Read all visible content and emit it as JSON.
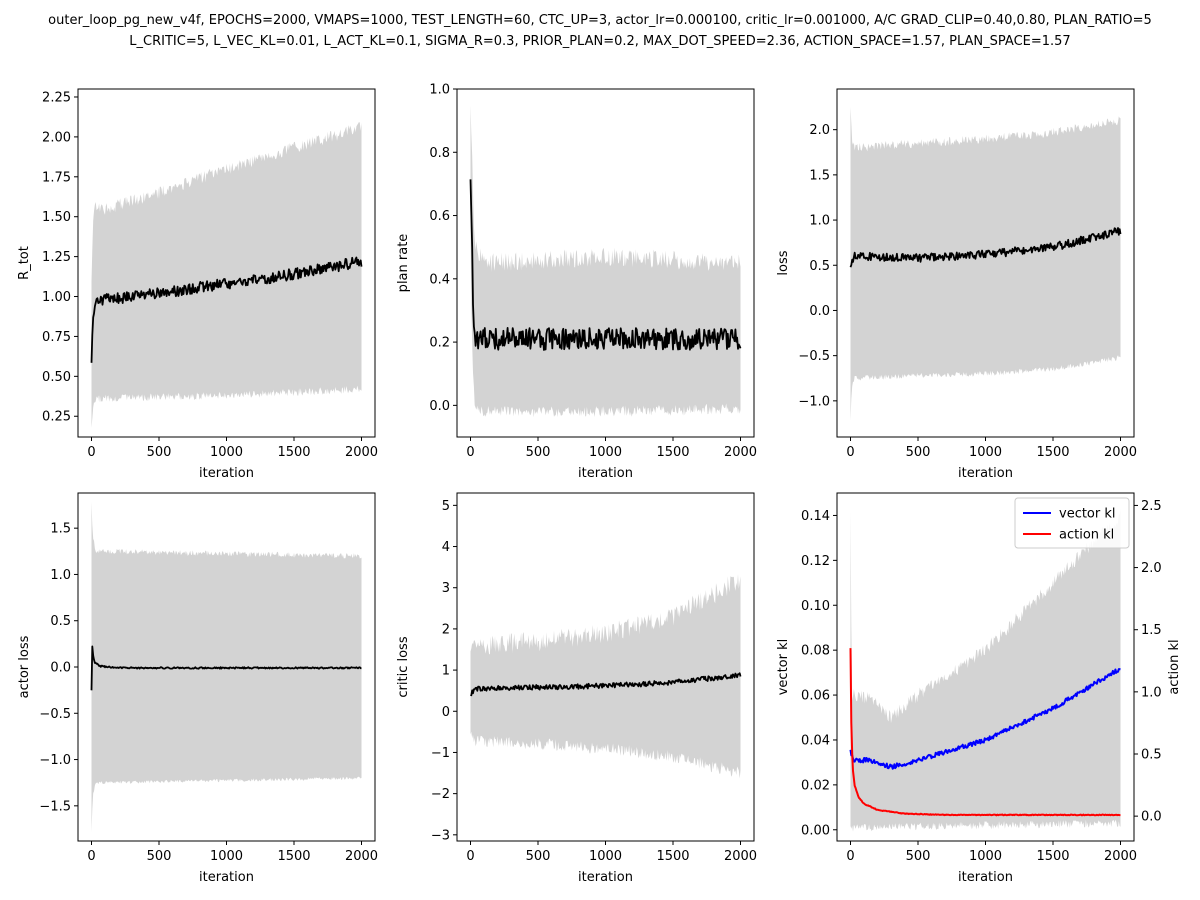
{
  "figure": {
    "title_lines": [
      "outer_loop_pg_new_v4f, EPOCHS=2000, VMAPS=1000, TEST_LENGTH=60, CTC_UP=3, actor_lr=0.000100, critic_lr=0.001000, A/C GRAD_CLIP=0.40,0.80, PLAN_RATIO=5",
      "L_CRITIC=5, L_VEC_KL=0.01, L_ACT_KL=0.1, SIGMA_R=0.3, PRIOR_PLAN=0.2, MAX_DOT_SPEED=2.36, ACTION_SPACE=1.57, PLAN_SPACE=1.57"
    ]
  },
  "colors": {
    "band": "#d3d3d3",
    "mean": "#000000",
    "vector": "#0000ff",
    "action": "#ff0000"
  },
  "chart_data": [
    {
      "type": "line",
      "id": "r-tot",
      "xlabel": "iteration",
      "ylabel": "R_tot",
      "xlim": [
        -100,
        2100
      ],
      "ylim": [
        0.12,
        2.3
      ],
      "xticks": [
        0,
        500,
        1000,
        1500,
        2000
      ],
      "yticks": [
        0.25,
        0.5,
        0.75,
        1.0,
        1.25,
        1.5,
        1.75,
        2.0,
        2.25
      ],
      "tick_decimals": 2,
      "mean": {
        "x": [
          0,
          10,
          30,
          100,
          500,
          1000,
          1500,
          2000
        ],
        "y": [
          0.62,
          0.85,
          0.96,
          0.98,
          1.02,
          1.08,
          1.14,
          1.22
        ]
      },
      "noise": 0.035,
      "band_lower": {
        "x": [
          0,
          10,
          30,
          100,
          500,
          1000,
          1500,
          2000
        ],
        "y": [
          0.17,
          0.3,
          0.36,
          0.36,
          0.37,
          0.38,
          0.4,
          0.42
        ]
      },
      "band_upper": {
        "x": [
          0,
          10,
          30,
          100,
          500,
          1000,
          1500,
          2000
        ],
        "y": [
          1.1,
          1.45,
          1.58,
          1.55,
          1.65,
          1.8,
          1.93,
          2.06
        ]
      },
      "band_noise": 0.04
    },
    {
      "type": "line",
      "id": "plan-rate",
      "xlabel": "iteration",
      "ylabel": "plan rate",
      "xlim": [
        -100,
        2100
      ],
      "ylim": [
        -0.1,
        1.0
      ],
      "xticks": [
        0,
        500,
        1000,
        1500,
        2000
      ],
      "yticks": [
        0.0,
        0.2,
        0.4,
        0.6,
        0.8,
        1.0
      ],
      "tick_decimals": 1,
      "mean": {
        "x": [
          0,
          10,
          20,
          40,
          100,
          1000,
          2000
        ],
        "y": [
          0.74,
          0.55,
          0.3,
          0.21,
          0.21,
          0.21,
          0.21
        ]
      },
      "noise": 0.035,
      "band_lower": {
        "x": [
          0,
          10,
          30,
          100,
          1000,
          2000
        ],
        "y": [
          0.55,
          0.2,
          0.0,
          -0.02,
          -0.02,
          -0.01
        ]
      },
      "band_upper": {
        "x": [
          0,
          10,
          30,
          100,
          1000,
          2000
        ],
        "y": [
          0.95,
          0.8,
          0.5,
          0.45,
          0.47,
          0.45
        ]
      },
      "band_noise": 0.03
    },
    {
      "type": "line",
      "id": "loss",
      "xlabel": "iteration",
      "ylabel": "loss",
      "xlim": [
        -100,
        2100
      ],
      "ylim": [
        -1.4,
        2.45
      ],
      "xticks": [
        0,
        500,
        1000,
        1500,
        2000
      ],
      "yticks": [
        -1.0,
        -0.5,
        0.0,
        0.5,
        1.0,
        1.5,
        2.0
      ],
      "tick_decimals": 1,
      "mean": {
        "x": [
          0,
          30,
          500,
          1000,
          1500,
          2000
        ],
        "y": [
          0.5,
          0.6,
          0.58,
          0.62,
          0.7,
          0.88
        ]
      },
      "noise": 0.045,
      "band_lower": {
        "x": [
          0,
          10,
          30,
          500,
          1000,
          1500,
          2000
        ],
        "y": [
          -1.2,
          -0.85,
          -0.75,
          -0.72,
          -0.7,
          -0.65,
          -0.52
        ]
      },
      "band_upper": {
        "x": [
          0,
          10,
          30,
          500,
          1000,
          1500,
          2000
        ],
        "y": [
          2.25,
          1.9,
          1.8,
          1.85,
          1.9,
          1.97,
          2.1
        ]
      },
      "band_noise": 0.05
    },
    {
      "type": "line",
      "id": "actor-loss",
      "xlabel": "iteration",
      "ylabel": "actor loss",
      "xlim": [
        -100,
        2100
      ],
      "ylim": [
        -1.88,
        1.88
      ],
      "xticks": [
        0,
        500,
        1000,
        1500,
        2000
      ],
      "yticks": [
        -1.5,
        -1.0,
        -0.5,
        0.0,
        0.5,
        1.0,
        1.5
      ],
      "tick_decimals": 1,
      "mean": {
        "x": [
          0,
          5,
          12,
          25,
          60,
          200,
          2000
        ],
        "y": [
          -0.25,
          0.25,
          0.12,
          0.05,
          0.01,
          -0.01,
          -0.01
        ]
      },
      "noise": 0.008,
      "band_lower": {
        "x": [
          0,
          10,
          30,
          2000
        ],
        "y": [
          -1.78,
          -1.4,
          -1.25,
          -1.2
        ]
      },
      "band_upper": {
        "x": [
          0,
          10,
          30,
          2000
        ],
        "y": [
          1.78,
          1.4,
          1.25,
          1.2
        ]
      },
      "band_noise": 0.03
    },
    {
      "type": "line",
      "id": "critic-loss",
      "xlabel": "iteration",
      "ylabel": "critic loss",
      "xlim": [
        -100,
        2100
      ],
      "ylim": [
        -3.15,
        5.3
      ],
      "xticks": [
        0,
        500,
        1000,
        1500,
        2000
      ],
      "yticks": [
        -3,
        -2,
        -1,
        0,
        1,
        2,
        3,
        4,
        5
      ],
      "tick_decimals": 0,
      "mean": {
        "x": [
          0,
          30,
          500,
          1000,
          1500,
          2000
        ],
        "y": [
          0.4,
          0.55,
          0.58,
          0.62,
          0.7,
          0.88
        ]
      },
      "noise": 0.06,
      "band_lower": {
        "x": [
          0,
          30,
          500,
          1000,
          1500,
          2000
        ],
        "y": [
          -0.6,
          -0.7,
          -0.8,
          -0.9,
          -1.1,
          -1.5
        ]
      },
      "band_upper": {
        "x": [
          0,
          30,
          500,
          1000,
          1500,
          2000
        ],
        "y": [
          1.4,
          1.6,
          1.7,
          1.9,
          2.3,
          3.2
        ]
      },
      "band_noise": 0.25
    },
    {
      "type": "line",
      "id": "kl",
      "xlabel": "iteration",
      "ylabel": "vector kl",
      "ylabel_right": "action kl",
      "xlim": [
        -100,
        2100
      ],
      "ylim": [
        -0.005,
        0.15
      ],
      "ylim_right": [
        -0.2,
        2.6
      ],
      "xticks": [
        0,
        500,
        1000,
        1500,
        2000
      ],
      "yticks": [
        0.0,
        0.02,
        0.04,
        0.06,
        0.08,
        0.1,
        0.12,
        0.14
      ],
      "yticks_right": [
        0.0,
        0.5,
        1.0,
        1.5,
        2.0,
        2.5
      ],
      "tick_decimals": 2,
      "tick_decimals_right": 1,
      "legend": {
        "position": "upper right",
        "entries": [
          "vector kl",
          "action kl"
        ]
      },
      "series": [
        {
          "name": "vector kl",
          "axis": "left",
          "mean": {
            "x": [
              0,
              20,
              50,
              150,
              300,
              500,
              1000,
              1500,
              2000
            ],
            "y": [
              0.035,
              0.031,
              0.031,
              0.031,
              0.028,
              0.031,
              0.04,
              0.054,
              0.072
            ]
          },
          "noise": 0.001,
          "band_lower": {
            "x": [
              0,
              10,
              30,
              2000
            ],
            "y": [
              0.0,
              0.0,
              0.001,
              0.003
            ]
          },
          "band_upper": {
            "x": [
              0,
              10,
              30,
              150,
              300,
              500,
              1000,
              1500,
              2000
            ],
            "y": [
              0.14,
              0.06,
              0.06,
              0.058,
              0.05,
              0.06,
              0.08,
              0.11,
              0.14
            ]
          },
          "band_noise": 0.003
        },
        {
          "name": "action kl",
          "axis": "right",
          "mean": {
            "x": [
              0,
              5,
              15,
              30,
              60,
              100,
              200,
              400,
              700,
              2000
            ],
            "y": [
              1.35,
              0.8,
              0.4,
              0.25,
              0.15,
              0.1,
              0.05,
              0.02,
              0.01,
              0.01
            ]
          },
          "noise": 0.003,
          "band_lower": {
            "x": [
              0,
              2000
            ],
            "y": [
              0.0,
              0.0
            ]
          },
          "band_upper": {
            "x": [
              0,
              2000
            ],
            "y": [
              0.0,
              0.0
            ]
          },
          "band_noise": 0.0
        }
      ]
    }
  ]
}
